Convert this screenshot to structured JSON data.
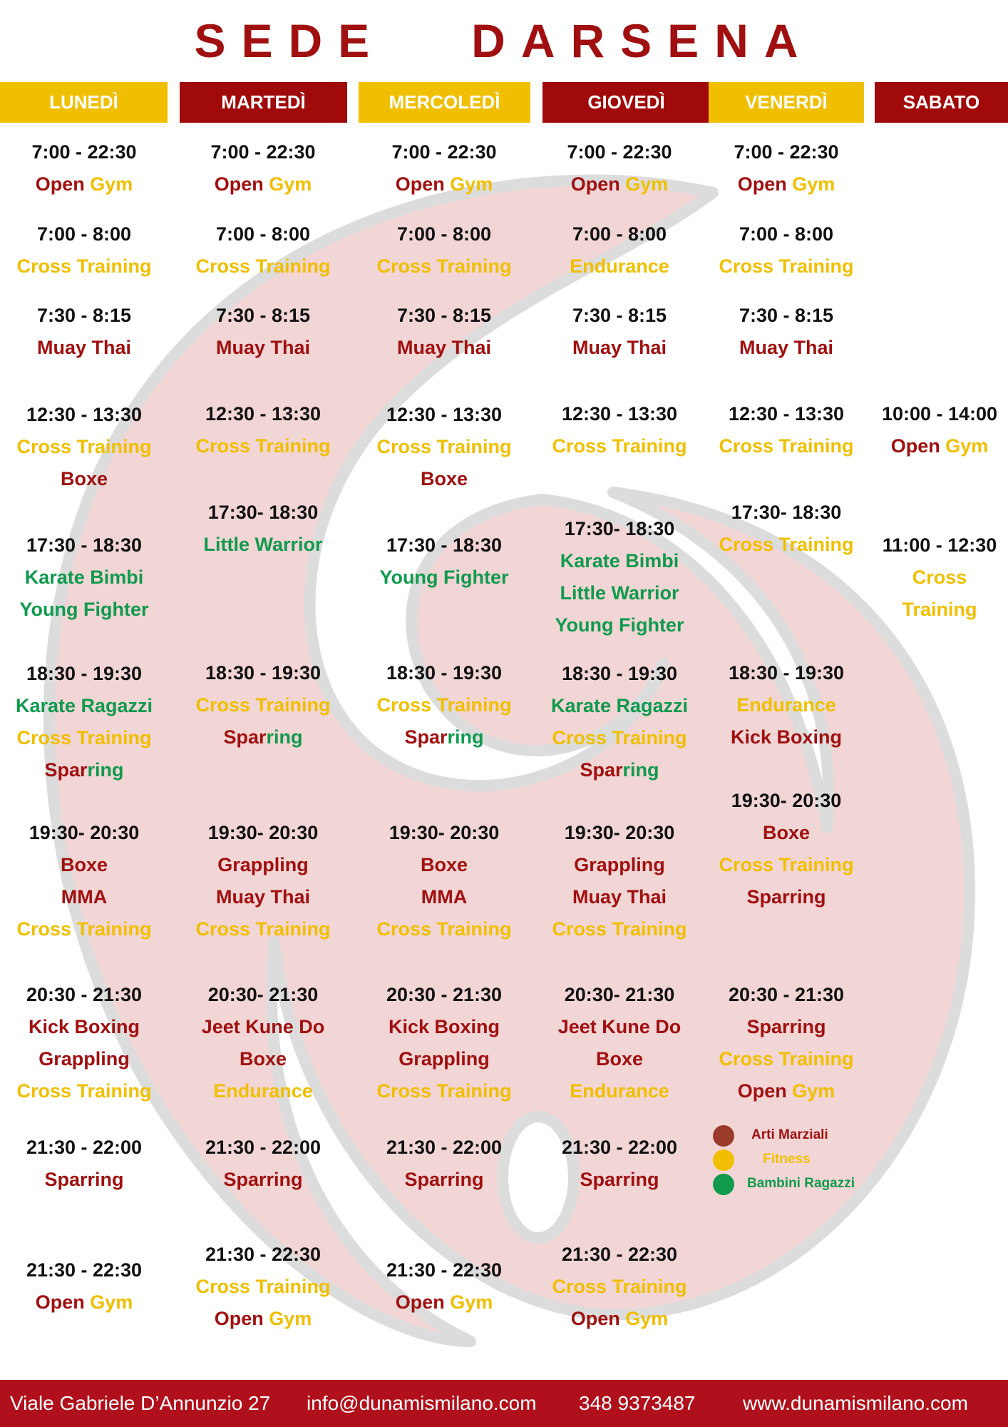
{
  "title": "SEDE   DARSENA",
  "days": [
    {
      "label": "LUNEDÌ",
      "color": "#f0bf00"
    },
    {
      "label": "MARTEDÌ",
      "color": "#a00a0a"
    },
    {
      "label": "MERCOLEDÌ",
      "color": "#f0bf00"
    },
    {
      "label": "GIOVEDÌ",
      "color": "#a00a0a"
    },
    {
      "label": "VENERDÌ",
      "color": "#f0bf00"
    },
    {
      "label": "SABATO",
      "color": "#a00a0a"
    }
  ],
  "categories": {
    "martial": {
      "label": "Arti Marziali",
      "color": "#a01010"
    },
    "fitness": {
      "label": "Fitness",
      "color": "#f0bf00"
    },
    "kids": {
      "label": "Bambini Ragazzi",
      "color": "#0f9a4e"
    }
  },
  "schedule": [
    [
      {
        "time": "7:00 - 22:30",
        "lines": [
          [
            [
              "Open",
              "martial"
            ],
            [
              " Gym",
              "fitness"
            ]
          ]
        ]
      },
      {
        "time": "7:00 - 8:00",
        "lines": [
          [
            [
              "Cross Training",
              "fitness"
            ]
          ]
        ]
      },
      {
        "time": "7:30 - 8:15",
        "lines": [
          [
            [
              "Muay Thai",
              "martial"
            ]
          ]
        ]
      },
      {
        "time": "12:30 - 13:30",
        "lines": [
          [
            [
              "Cross Training",
              "fitness"
            ]
          ],
          [
            [
              "Boxe",
              "martial"
            ]
          ]
        ]
      },
      {
        "time": "17:30 - 18:30",
        "lines": [
          [
            [
              "Karate Bimbi",
              "kids"
            ]
          ],
          [
            [
              "Young Fighter",
              "kids"
            ]
          ]
        ]
      },
      {
        "time": "18:30 - 19:30",
        "lines": [
          [
            [
              "Karate Ragazzi",
              "kids"
            ]
          ],
          [
            [
              "Cross Training",
              "fitness"
            ]
          ],
          [
            [
              "Spar",
              "martial"
            ],
            [
              "ring",
              "kids"
            ]
          ]
        ]
      },
      {
        "time": "19:30- 20:30",
        "lines": [
          [
            [
              "Boxe",
              "martial"
            ]
          ],
          [
            [
              "MMA",
              "martial"
            ]
          ],
          [
            [
              "Cross Training",
              "fitness"
            ]
          ]
        ]
      },
      {
        "time": "20:30 - 21:30",
        "lines": [
          [
            [
              "Kick Boxing",
              "martial"
            ]
          ],
          [
            [
              "Grappling",
              "martial"
            ]
          ],
          [
            [
              "Cross Training",
              "fitness"
            ]
          ]
        ]
      },
      {
        "time": "21:30 - 22:00",
        "lines": [
          [
            [
              "Sparring",
              "martial"
            ]
          ]
        ]
      },
      {
        "time": "21:30 - 22:30",
        "lines": [
          [
            [
              "Open",
              "martial"
            ],
            [
              " Gym",
              "fitness"
            ]
          ]
        ]
      }
    ],
    [
      {
        "time": "7:00 - 22:30",
        "lines": [
          [
            [
              "Open",
              "martial"
            ],
            [
              " Gym",
              "fitness"
            ]
          ]
        ]
      },
      {
        "time": "7:00 - 8:00",
        "lines": [
          [
            [
              "Cross Training",
              "fitness"
            ]
          ]
        ]
      },
      {
        "time": "7:30 - 8:15",
        "lines": [
          [
            [
              "Muay Thai",
              "martial"
            ]
          ]
        ]
      },
      {
        "time": "12:30 - 13:30",
        "lines": [
          [
            [
              "Cross Training",
              "fitness"
            ]
          ]
        ]
      },
      {
        "time": "17:30- 18:30",
        "lines": [
          [
            [
              "Little Warrior",
              "kids"
            ]
          ]
        ]
      },
      {
        "time": "18:30 - 19:30",
        "lines": [
          [
            [
              "Cross Training",
              "fitness"
            ]
          ],
          [
            [
              "Spar",
              "martial"
            ],
            [
              "ring",
              "kids"
            ]
          ]
        ]
      },
      {
        "time": "19:30- 20:30",
        "lines": [
          [
            [
              "Grappling",
              "martial"
            ]
          ],
          [
            [
              "Muay Thai",
              "martial"
            ]
          ],
          [
            [
              "Cross Training",
              "fitness"
            ]
          ]
        ]
      },
      {
        "time": "20:30- 21:30",
        "lines": [
          [
            [
              "Jeet Kune Do",
              "martial"
            ]
          ],
          [
            [
              "Boxe",
              "martial"
            ]
          ],
          [
            [
              "Endurance",
              "fitness"
            ]
          ]
        ]
      },
      {
        "time": "21:30 - 22:00",
        "lines": [
          [
            [
              "Sparring",
              "martial"
            ]
          ]
        ]
      },
      {
        "time": "21:30 - 22:30",
        "lines": [
          [
            [
              "Cross Training",
              "fitness"
            ]
          ],
          [
            [
              "Open",
              "martial"
            ],
            [
              " Gym",
              "fitness"
            ]
          ]
        ]
      }
    ],
    [
      {
        "time": "7:00 - 22:30",
        "lines": [
          [
            [
              "Open",
              "martial"
            ],
            [
              " Gym",
              "fitness"
            ]
          ]
        ]
      },
      {
        "time": "7:00 - 8:00",
        "lines": [
          [
            [
              "Cross Training",
              "fitness"
            ]
          ]
        ]
      },
      {
        "time": "7:30 - 8:15",
        "lines": [
          [
            [
              "Muay Thai",
              "martial"
            ]
          ]
        ]
      },
      {
        "time": "12:30 - 13:30",
        "lines": [
          [
            [
              "Cross Training",
              "fitness"
            ]
          ],
          [
            [
              "Boxe",
              "martial"
            ]
          ]
        ]
      },
      {
        "time": "17:30 - 18:30",
        "lines": [
          [
            [
              "Young Fighter",
              "kids"
            ]
          ]
        ]
      },
      {
        "time": "18:30 - 19:30",
        "lines": [
          [
            [
              "Cross Training",
              "fitness"
            ]
          ],
          [
            [
              "Spar",
              "martial"
            ],
            [
              "ring",
              "kids"
            ]
          ]
        ]
      },
      {
        "time": "19:30- 20:30",
        "lines": [
          [
            [
              "Boxe",
              "martial"
            ]
          ],
          [
            [
              "MMA",
              "martial"
            ]
          ],
          [
            [
              "Cross Training",
              "fitness"
            ]
          ]
        ]
      },
      {
        "time": "20:30 - 21:30",
        "lines": [
          [
            [
              "Kick Boxing",
              "martial"
            ]
          ],
          [
            [
              "Grappling",
              "martial"
            ]
          ],
          [
            [
              "Cross Training",
              "fitness"
            ]
          ]
        ]
      },
      {
        "time": "21:30 - 22:00",
        "lines": [
          [
            [
              "Sparring",
              "martial"
            ]
          ]
        ]
      },
      {
        "time": "21:30 - 22:30",
        "lines": [
          [
            [
              "Open",
              "martial"
            ],
            [
              " Gym",
              "fitness"
            ]
          ]
        ]
      }
    ],
    [
      {
        "time": "7:00 - 22:30",
        "lines": [
          [
            [
              "Open",
              "martial"
            ],
            [
              " Gym",
              "fitness"
            ]
          ]
        ]
      },
      {
        "time": "7:00 - 8:00",
        "lines": [
          [
            [
              "Endurance",
              "fitness"
            ]
          ]
        ]
      },
      {
        "time": "7:30 - 8:15",
        "lines": [
          [
            [
              "Muay Thai",
              "martial"
            ]
          ]
        ]
      },
      {
        "time": "12:30 - 13:30",
        "lines": [
          [
            [
              "Cross Training",
              "fitness"
            ]
          ]
        ]
      },
      {
        "time": "17:30- 18:30",
        "lines": [
          [
            [
              "Karate Bimbi",
              "kids"
            ]
          ],
          [
            [
              "Little Warrior",
              "kids"
            ]
          ],
          [
            [
              "Young Fighter",
              "kids"
            ]
          ]
        ]
      },
      {
        "time": "18:30 - 19:30",
        "lines": [
          [
            [
              "Karate Ragazzi",
              "kids"
            ]
          ],
          [
            [
              "Cross Training",
              "fitness"
            ]
          ],
          [
            [
              "Spar",
              "martial"
            ],
            [
              "ring",
              "kids"
            ]
          ]
        ]
      },
      {
        "time": "19:30- 20:30",
        "lines": [
          [
            [
              "Grappling",
              "martial"
            ]
          ],
          [
            [
              "Muay Thai",
              "martial"
            ]
          ],
          [
            [
              "Cross Training",
              "fitness"
            ]
          ]
        ]
      },
      {
        "time": "20:30- 21:30",
        "lines": [
          [
            [
              "Jeet Kune Do",
              "martial"
            ]
          ],
          [
            [
              "Boxe",
              "martial"
            ]
          ],
          [
            [
              "Endurance",
              "fitness"
            ]
          ]
        ]
      },
      {
        "time": "21:30 - 22:00",
        "lines": [
          [
            [
              "Sparring",
              "martial"
            ]
          ]
        ]
      },
      {
        "time": "21:30 - 22:30",
        "lines": [
          [
            [
              "Cross Training",
              "fitness"
            ]
          ],
          [
            [
              "Open",
              "martial"
            ],
            [
              " Gym",
              "fitness"
            ]
          ]
        ]
      }
    ],
    [
      {
        "time": "7:00 - 22:30",
        "lines": [
          [
            [
              "Open",
              "martial"
            ],
            [
              " Gym",
              "fitness"
            ]
          ]
        ]
      },
      {
        "time": "7:00 - 8:00",
        "lines": [
          [
            [
              "Cross Training",
              "fitness"
            ]
          ]
        ]
      },
      {
        "time": "7:30 - 8:15",
        "lines": [
          [
            [
              "Muay Thai",
              "martial"
            ]
          ]
        ]
      },
      {
        "time": "12:30 - 13:30",
        "lines": [
          [
            [
              "Cross Training",
              "fitness"
            ]
          ]
        ]
      },
      {
        "time": "17:30- 18:30",
        "lines": [
          [
            [
              "Cross Training",
              "fitness"
            ]
          ]
        ]
      },
      {
        "time": "18:30 - 19:30",
        "lines": [
          [
            [
              "Endurance",
              "fitness"
            ]
          ],
          [
            [
              "Kick Boxing",
              "martial"
            ]
          ]
        ]
      },
      {
        "time": "19:30- 20:30",
        "lines": [
          [
            [
              "Boxe",
              "martial"
            ]
          ],
          [
            [
              "Cross Training",
              "fitness"
            ]
          ],
          [
            [
              "Sparring",
              "martial"
            ]
          ]
        ]
      },
      {
        "time": "20:30 - 21:30",
        "lines": [
          [
            [
              "Sparring",
              "martial"
            ]
          ],
          [
            [
              "Cross Training",
              "fitness"
            ]
          ],
          [
            [
              "Open",
              "martial"
            ],
            [
              " Gym",
              "fitness"
            ]
          ]
        ]
      }
    ],
    [
      {
        "time": "10:00 - 14:00",
        "lines": [
          [
            [
              "Open",
              "martial"
            ],
            [
              " Gym",
              "fitness"
            ]
          ]
        ]
      },
      {
        "time": "11:00 - 12:30",
        "lines": [
          [
            [
              "Cross",
              "fitness"
            ]
          ],
          [
            [
              "Training",
              "fitness"
            ]
          ]
        ]
      }
    ]
  ],
  "footer": {
    "address": "Viale Gabriele D’Annunzio 27",
    "email": "info@dunamismilano.com",
    "phone": "348 9373487",
    "website": "www.dunamismilano.com"
  }
}
